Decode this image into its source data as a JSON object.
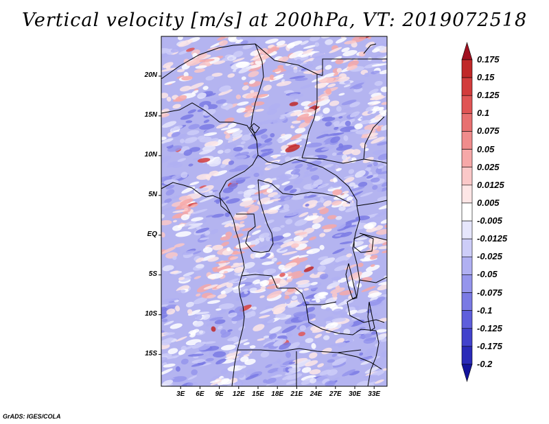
{
  "title": "Vertical velocity [m/s] at 200hPa, VT: 2019072518",
  "credit": "GrADS: IGES/COLA",
  "lat_labels": [
    "20N",
    "15N",
    "10N",
    "5N",
    "EQ",
    "5S",
    "10S",
    "15S"
  ],
  "lat_values": [
    20,
    15,
    10,
    5,
    0,
    -5,
    -10,
    -15
  ],
  "lon_labels": [
    "3E",
    "6E",
    "9E",
    "12E",
    "15E",
    "18E",
    "21E",
    "24E",
    "27E",
    "30E",
    "33E"
  ],
  "lon_values": [
    3,
    6,
    9,
    12,
    15,
    18,
    21,
    24,
    27,
    30,
    33
  ],
  "map_extent": {
    "lon_min": 0,
    "lon_max": 35,
    "lat_min": -19,
    "lat_max": 25
  },
  "colorbar": {
    "labels": [
      "0.175",
      "0.15",
      "0.125",
      "0.1",
      "0.075",
      "0.05",
      "0.025",
      "0.0125",
      "0.005",
      "-0.005",
      "-0.0125",
      "-0.025",
      "-0.05",
      "-0.075",
      "-0.1",
      "-0.125",
      "-0.175",
      "-0.2"
    ],
    "colors": [
      "#a01020",
      "#c02828",
      "#d23c3c",
      "#e05555",
      "#e87070",
      "#f08c8c",
      "#f6a8a8",
      "#fac8c8",
      "#fde6e6",
      "#ffffff",
      "#e6e6fc",
      "#cdcdf8",
      "#b0b0f2",
      "#9595ec",
      "#7a7ae4",
      "#5e5edc",
      "#4242cc",
      "#2a2ab8",
      "#14149c"
    ]
  }
}
